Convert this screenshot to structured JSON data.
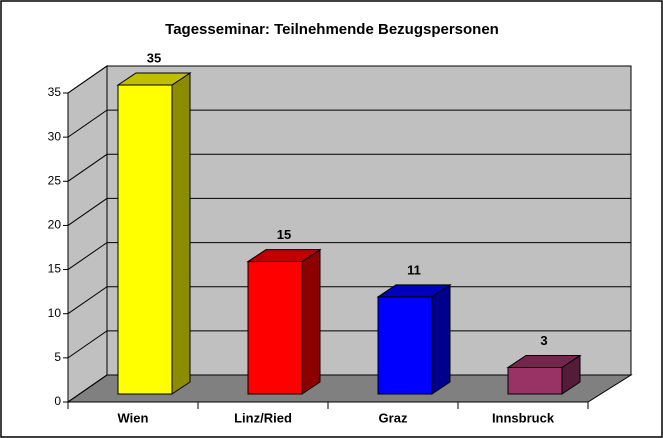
{
  "chart_data": {
    "type": "bar3d",
    "title": "Tagesseminar: Teilnehmende Bezugspersonen",
    "categories": [
      "Wien",
      "Linz/Ried",
      "Graz",
      "Innsbruck"
    ],
    "values": [
      35,
      15,
      11,
      3
    ],
    "colors": [
      "#ffff00",
      "#ff0000",
      "#0000ff",
      "#993366"
    ],
    "ylim": [
      0,
      35
    ],
    "yticks": [
      0,
      5,
      10,
      15,
      20,
      25,
      30,
      35
    ],
    "grid": true
  }
}
